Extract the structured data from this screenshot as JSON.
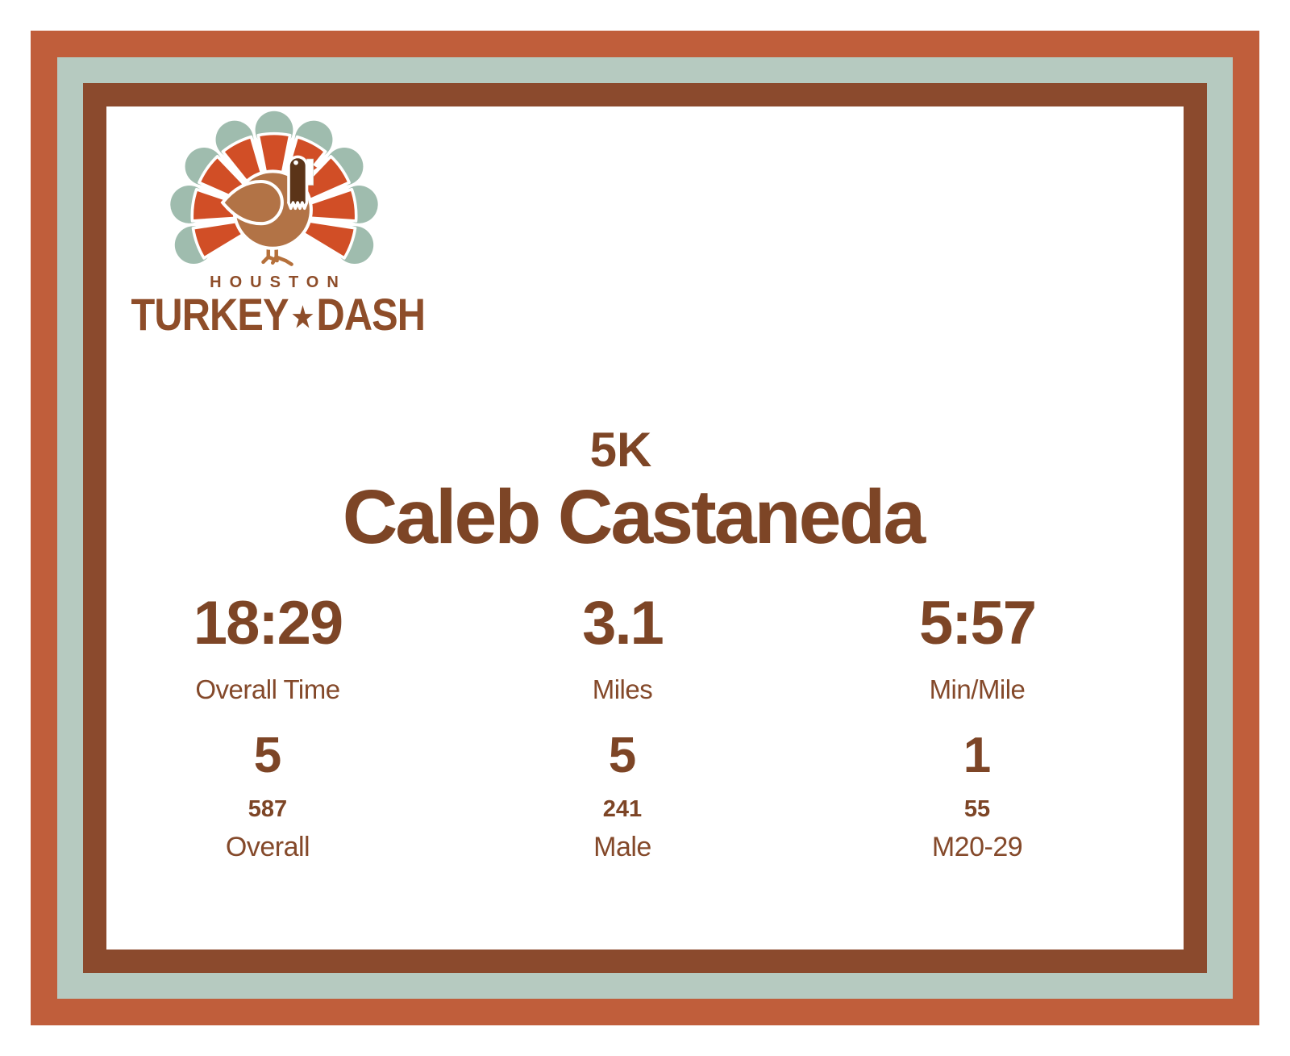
{
  "brand": {
    "city": "HOUSTON",
    "name_left": "TURKEY",
    "star": "★",
    "name_right": "DASH"
  },
  "result": {
    "race": "5K",
    "athlete": "Caleb Castaneda"
  },
  "stats": {
    "columns": [
      {
        "value": "18:29",
        "label": "Overall Time",
        "place": "5",
        "out_of": "587",
        "division": "Overall"
      },
      {
        "value": "3.1",
        "label": "Miles",
        "place": "5",
        "out_of": "241",
        "division": "Male"
      },
      {
        "value": "5:57",
        "label": "Min/Mile",
        "place": "1",
        "out_of": "55",
        "division": "M20-29"
      }
    ]
  },
  "colors": {
    "frame_orange": "#c05e3b",
    "frame_sage": "#b6cac0",
    "frame_brown": "#8b4a2d",
    "fan_orange": "#d14e26",
    "fan_sage": "#9fbcae",
    "body_tan": "#b27346",
    "head_brown": "#5b3418",
    "legs_brown": "#b5703b",
    "stats_text_brown": "#7d4526",
    "logo_text_brown": "#8e4d29"
  }
}
